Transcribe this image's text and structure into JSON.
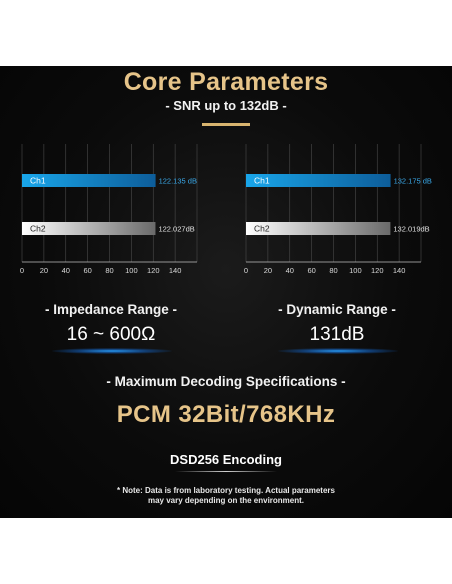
{
  "header": {
    "title": "Core Parameters",
    "subtitle": "- SNR up to 132dB -"
  },
  "chart_data": [
    {
      "type": "bar",
      "orientation": "horizontal",
      "categories": [
        "Ch1",
        "Ch2"
      ],
      "values": [
        122.135,
        122.027
      ],
      "value_labels": [
        "122.135 dB",
        "122.027dB"
      ],
      "xlim": [
        0,
        160
      ],
      "x_ticks": [
        0,
        20,
        40,
        60,
        80,
        100,
        120,
        140
      ],
      "bar_colors": [
        "#1aa0e0",
        "#e8e8e8"
      ]
    },
    {
      "type": "bar",
      "orientation": "horizontal",
      "categories": [
        "Ch1",
        "Ch2"
      ],
      "values": [
        132.175,
        132.019
      ],
      "value_labels": [
        "132.175 dB",
        "132.019dB"
      ],
      "xlim": [
        0,
        160
      ],
      "x_ticks": [
        0,
        20,
        40,
        60,
        80,
        100,
        120,
        140
      ],
      "bar_colors": [
        "#1aa0e0",
        "#e8e8e8"
      ]
    }
  ],
  "specs": {
    "impedance_label": "- Impedance Range -",
    "impedance_value": "16 ~ 600Ω",
    "dynamic_label": "- Dynamic Range -",
    "dynamic_value": "131dB",
    "decoding_label": "- Maximum Decoding Specifications -",
    "pcm": "PCM 32Bit/768KHz",
    "dsd": "DSD256 Encoding"
  },
  "note": {
    "line1": "* Note: Data is from laboratory testing. Actual parameters",
    "line2": "may vary depending on the environment."
  },
  "colors": {
    "gold": "#e6c489",
    "blue": "#1aa0e0",
    "background": "#0b0b0b"
  }
}
